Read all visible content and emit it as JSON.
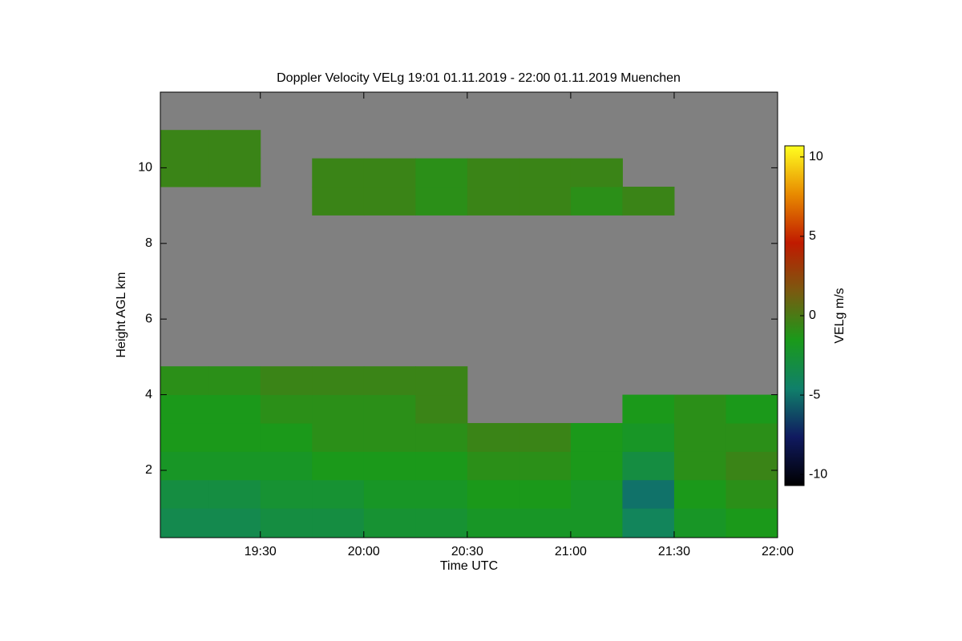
{
  "chart_data": {
    "type": "heatmap",
    "title": "Doppler Velocity VELg   19:01 01.11.2019 - 22:00 01.11.2019 Muenchen",
    "xlabel": "Time UTC",
    "ylabel": "Height AGL km",
    "colorbar_label": "VELg m/s",
    "background_color": "#808080",
    "xlim": [
      1141,
      1320
    ],
    "xticks": [
      {
        "value": 1170,
        "label": "19:30"
      },
      {
        "value": 1200,
        "label": "20:00"
      },
      {
        "value": 1230,
        "label": "20:30"
      },
      {
        "value": 1260,
        "label": "21:00"
      },
      {
        "value": 1290,
        "label": "21:30"
      },
      {
        "value": 1320,
        "label": "22:00"
      }
    ],
    "ylim": [
      0.22,
      12
    ],
    "yticks": [
      2,
      4,
      6,
      8,
      10
    ],
    "zlim": [
      -10.7,
      10.7
    ],
    "zticks": [
      -10,
      -5,
      0,
      5,
      10
    ],
    "colormap": [
      "#000000",
      "#101a60",
      "#10806a",
      "#1a9a1a",
      "#7a5a10",
      "#c01a00",
      "#e88a00",
      "#ffff20"
    ],
    "xbins": [
      1141,
      1155,
      1170,
      1185,
      1200,
      1215,
      1230,
      1245,
      1260,
      1275,
      1290,
      1305,
      1320
    ],
    "ybins": [
      0.22,
      1,
      1.75,
      2.5,
      3.25,
      4,
      4.75,
      8.75,
      9.5,
      10.25,
      11,
      12
    ],
    "z": [
      [
        -3.5,
        -3.5,
        -3,
        -3,
        -2.5,
        -2.5,
        -2,
        -2,
        -2,
        -4,
        -2,
        -1.5
      ],
      [
        -3,
        -3,
        -2.5,
        -2.5,
        -2,
        -2,
        -1.5,
        -1.5,
        -2,
        -5,
        -1.5,
        -1
      ],
      [
        -2,
        -2,
        -2,
        -1.5,
        -1.5,
        -1.5,
        -1,
        -1,
        -1.5,
        -3,
        -1,
        -0.5
      ],
      [
        -1.5,
        -1.5,
        -1.5,
        -1,
        -1,
        -1,
        -0.5,
        -0.5,
        -1.5,
        -2,
        -1,
        -1
      ],
      [
        -1.5,
        -1.5,
        -1,
        -1,
        -1,
        -0.5,
        null,
        null,
        null,
        -1.5,
        -1,
        -1.5
      ],
      [
        -1,
        -1,
        -0.5,
        -0.5,
        -0.5,
        -0.5,
        null,
        null,
        null,
        null,
        null,
        null
      ],
      [
        null,
        null,
        null,
        null,
        null,
        null,
        null,
        null,
        null,
        null,
        null,
        null
      ],
      [
        null,
        null,
        null,
        -0.5,
        -0.5,
        -1,
        -0.5,
        -0.5,
        -1,
        -0.5,
        null,
        null
      ],
      [
        -0.5,
        -0.5,
        null,
        -0.5,
        -0.5,
        -1,
        -0.5,
        -0.5,
        -0.5,
        null,
        null,
        null
      ],
      [
        -0.5,
        -0.5,
        null,
        null,
        null,
        null,
        null,
        null,
        null,
        null,
        null,
        null
      ],
      [
        null,
        null,
        null,
        null,
        null,
        null,
        null,
        null,
        null,
        null,
        null,
        null
      ]
    ]
  }
}
